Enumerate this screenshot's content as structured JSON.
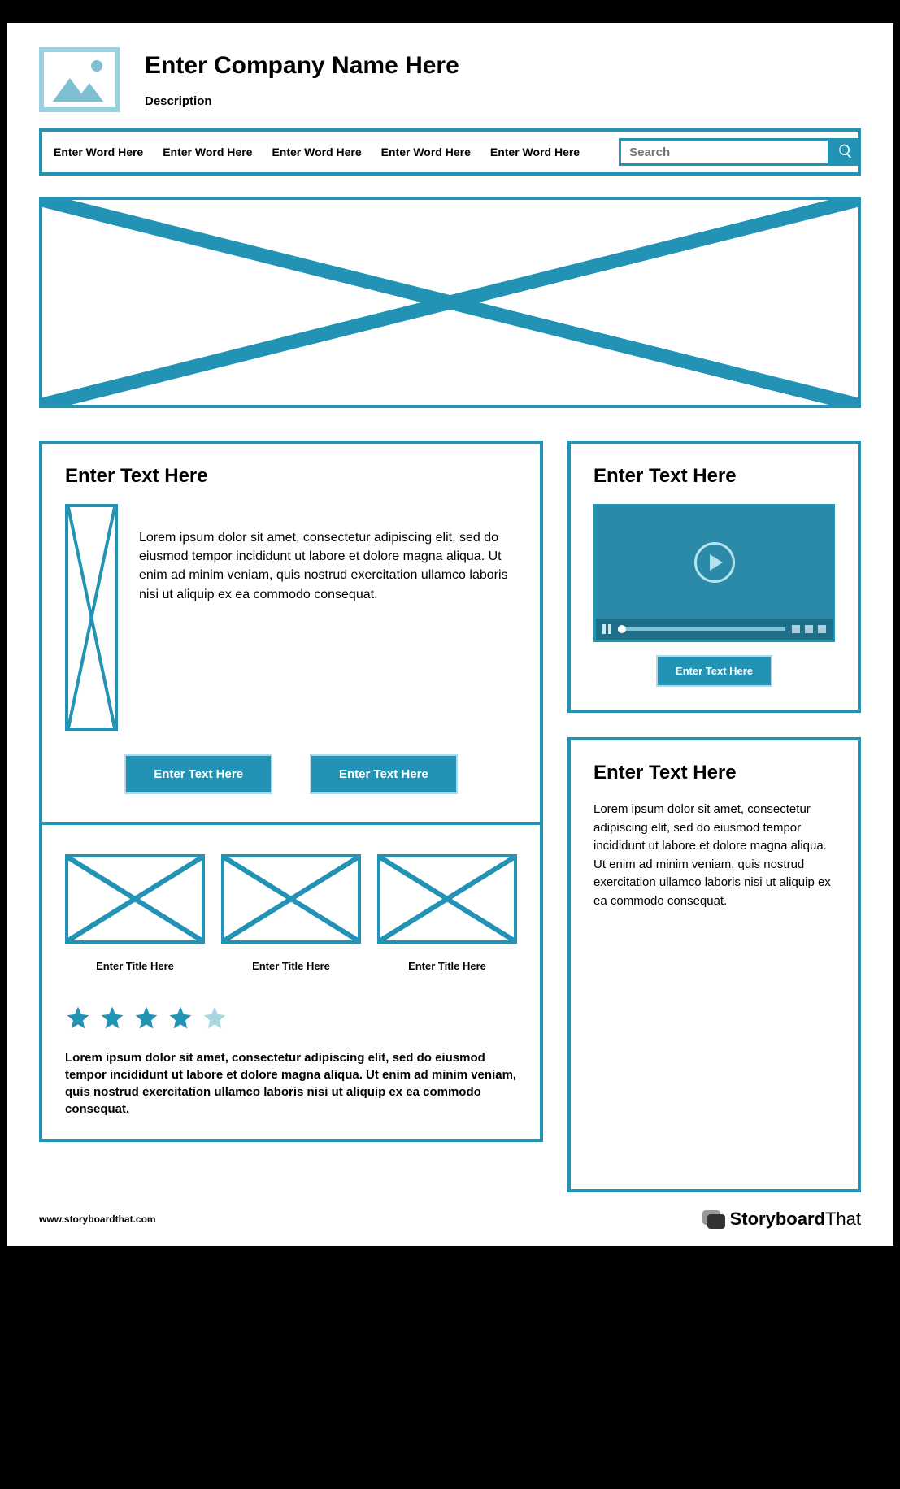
{
  "colors": {
    "accent": "#2293b5",
    "logo_border": "#9ad1df",
    "logo_fill": "#7fbfd1",
    "star_on": "#2293b5",
    "star_off": "#a9d7e0"
  },
  "header": {
    "company": "Enter Company Name Here",
    "description": "Description"
  },
  "nav": {
    "items": [
      "Enter Word Here",
      "Enter Word Here",
      "Enter Word Here",
      "Enter Word Here",
      "Enter Word Here"
    ],
    "search_placeholder": "Search"
  },
  "panel_a": {
    "title": "Enter Text Here",
    "body": "Lorem ipsum dolor sit amet, consectetur adipiscing elit, sed do eiusmod tempor incididunt ut labore et dolore magna aliqua. Ut enim ad minim veniam, quis nostrud exercitation ullamco laboris nisi ut aliquip ex ea commodo consequat.",
    "btn1": "Enter Text Here",
    "btn2": "Enter Text Here"
  },
  "panel_b": {
    "items": [
      {
        "caption": "Enter Title Here"
      },
      {
        "caption": "Enter Title Here"
      },
      {
        "caption": "Enter Title Here"
      }
    ],
    "rating": {
      "filled": 4,
      "total": 5
    },
    "review": "Lorem ipsum dolor sit amet, consectetur adipiscing elit, sed do eiusmod tempor incididunt ut labore et dolore magna aliqua. Ut enim ad minim veniam, quis nostrud exercitation ullamco laboris nisi ut aliquip ex ea commodo consequat."
  },
  "panel_video": {
    "title": "Enter Text Here",
    "cta": "Enter Text Here"
  },
  "panel_text": {
    "title": "Enter Text Here",
    "body": "Lorem ipsum dolor sit amet, consectetur adipiscing elit, sed do eiusmod tempor incididunt ut labore et dolore magna aliqua. Ut enim ad minim veniam, quis nostrud exercitation ullamco laboris nisi ut aliquip ex ea commodo consequat."
  },
  "footer": {
    "url": "www.storyboardthat.com",
    "brand_bold": "Storyboard",
    "brand_light": "That"
  }
}
